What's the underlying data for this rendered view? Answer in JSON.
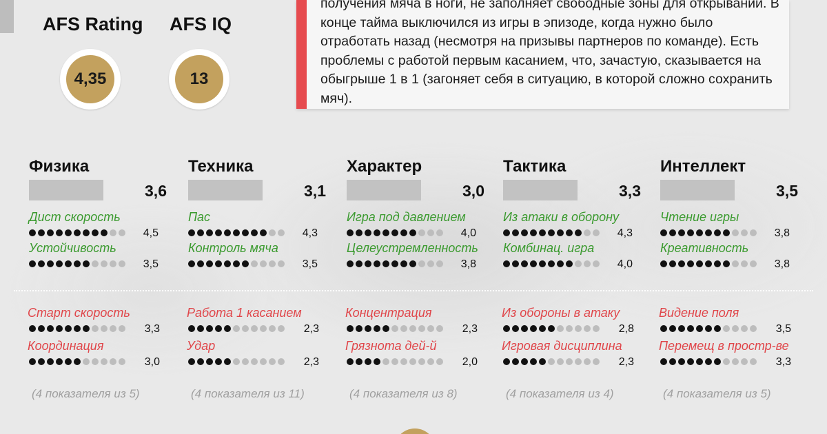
{
  "ratings": [
    {
      "label": "AFS Rating",
      "value": "4,35"
    },
    {
      "label": "AFS IQ",
      "value": "13"
    }
  ],
  "description": "получения мяча в ноги, не заполняет свободные зоны для открываний. В конце тайма выключился из игры в эпизоде, когда нужно было отработать назад (несмотря на призывы партнеров по команде). Есть проблемы с работой первым касанием, что, зачастую, сказывается на обыгрыше 1 в 1 (загоняет себя в ситуацию, в которой сложно сохранить мяч).",
  "colors": {
    "gold": "#c3a15e",
    "accent_red": "#e64b4f",
    "strength_green": "#3a9a2e",
    "weakness_red": "#e0464a"
  },
  "categories": [
    {
      "title": "Физика",
      "score": "3,6",
      "strengths": [
        {
          "name": "Дист скорость",
          "value": "4,5",
          "dots": 9
        },
        {
          "name": "Устойчивость",
          "value": "3,5",
          "dots": 7
        }
      ],
      "weaknesses": [
        {
          "name": "Старт скорость",
          "value": "3,3",
          "dots": 7
        },
        {
          "name": "Координация",
          "value": "3,0",
          "dots": 6
        }
      ],
      "note": "(4 показателя из 5)"
    },
    {
      "title": "Техника",
      "score": "3,1",
      "strengths": [
        {
          "name": "Пас",
          "value": "4,3",
          "dots": 9
        },
        {
          "name": "Контроль мяча",
          "value": "3,5",
          "dots": 7
        }
      ],
      "weaknesses": [
        {
          "name": "Работа 1 касанием",
          "value": "2,3",
          "dots": 5
        },
        {
          "name": "Удар",
          "value": "2,3",
          "dots": 5
        }
      ],
      "note": "(4 показателя из 11)"
    },
    {
      "title": "Характер",
      "score": "3,0",
      "strengths": [
        {
          "name": "Игра под давлением",
          "value": "4,0",
          "dots": 8
        },
        {
          "name": "Целеустремленность",
          "value": "3,8",
          "dots": 8
        }
      ],
      "weaknesses": [
        {
          "name": "Концентрация",
          "value": "2,3",
          "dots": 5
        },
        {
          "name": "Грязнота дей-й",
          "value": "2,0",
          "dots": 4
        }
      ],
      "note": "(4 показателя из 8)"
    },
    {
      "title": "Тактика",
      "score": "3,3",
      "strengths": [
        {
          "name": "Из атаки в оборону",
          "value": "4,3",
          "dots": 9
        },
        {
          "name": "Комбинац. игра",
          "value": "4,0",
          "dots": 8
        }
      ],
      "weaknesses": [
        {
          "name": "Из обороны в атаку",
          "value": "2,8",
          "dots": 6
        },
        {
          "name": "Игровая дисциплина",
          "value": "2,3",
          "dots": 5
        }
      ],
      "note": "(4 показателя из 4)"
    },
    {
      "title": "Интеллект",
      "score": "3,5",
      "strengths": [
        {
          "name": "Чтение игры",
          "value": "3,8",
          "dots": 8
        },
        {
          "name": "Креативность",
          "value": "3,8",
          "dots": 8
        }
      ],
      "weaknesses": [
        {
          "name": "Видение поля",
          "value": "3,5",
          "dots": 7
        },
        {
          "name": "Перемещ в простр-ве",
          "value": "3,3",
          "dots": 7
        }
      ],
      "note": "(4 показателя из 5)"
    }
  ]
}
